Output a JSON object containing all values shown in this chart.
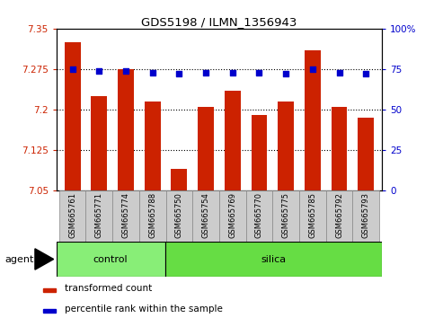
{
  "title": "GDS5198 / ILMN_1356943",
  "samples": [
    "GSM665761",
    "GSM665771",
    "GSM665774",
    "GSM665788",
    "GSM665750",
    "GSM665754",
    "GSM665769",
    "GSM665770",
    "GSM665775",
    "GSM665785",
    "GSM665792",
    "GSM665793"
  ],
  "red_values": [
    7.325,
    7.225,
    7.275,
    7.215,
    7.09,
    7.205,
    7.235,
    7.19,
    7.215,
    7.31,
    7.205,
    7.185
  ],
  "blue_values": [
    75,
    74,
    74,
    73,
    72,
    73,
    73,
    73,
    72,
    75,
    73,
    72
  ],
  "ylim_left": [
    7.05,
    7.35
  ],
  "ylim_right": [
    0,
    100
  ],
  "yticks_left": [
    7.05,
    7.125,
    7.2,
    7.275,
    7.35
  ],
  "yticks_right": [
    0,
    25,
    50,
    75,
    100
  ],
  "ytick_labels_left": [
    "7.05",
    "7.125",
    "7.2",
    "7.275",
    "7.35"
  ],
  "ytick_labels_right": [
    "0",
    "25",
    "50",
    "75",
    "100%"
  ],
  "hlines": [
    7.125,
    7.2,
    7.275
  ],
  "control_count": 4,
  "silica_count": 8,
  "control_label": "control",
  "silica_label": "silica",
  "agent_label": "agent",
  "legend_red": "transformed count",
  "legend_blue": "percentile rank within the sample",
  "bar_color": "#cc2200",
  "dot_color": "#0000cc",
  "control_bg": "#88ee77",
  "silica_bg": "#66dd44",
  "xticklabel_bg": "#cccccc",
  "bar_width": 0.6,
  "figsize": [
    4.83,
    3.54
  ],
  "dpi": 100
}
